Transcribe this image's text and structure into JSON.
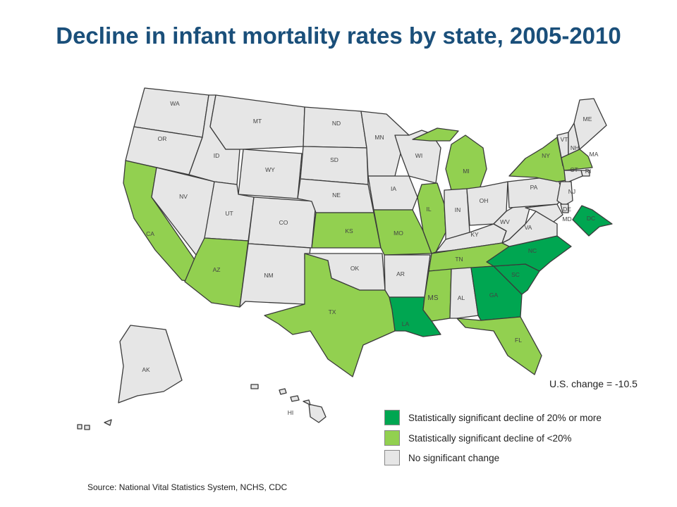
{
  "title": "Decline in infant mortality rates by state, 2005-2010",
  "colors": {
    "significant_20": "#00a651",
    "significant_lt20": "#92d050",
    "no_change": "#e6e6e6",
    "title": "#1a4f7a"
  },
  "states": [
    {
      "abbr": "WA",
      "category": "no_change"
    },
    {
      "abbr": "OR",
      "category": "no_change"
    },
    {
      "abbr": "CA",
      "category": "significant_lt20"
    },
    {
      "abbr": "NV",
      "category": "no_change"
    },
    {
      "abbr": "ID",
      "category": "no_change"
    },
    {
      "abbr": "MT",
      "category": "no_change"
    },
    {
      "abbr": "WY",
      "category": "no_change"
    },
    {
      "abbr": "UT",
      "category": "no_change"
    },
    {
      "abbr": "AZ",
      "category": "significant_lt20"
    },
    {
      "abbr": "CO",
      "category": "no_change"
    },
    {
      "abbr": "NM",
      "category": "no_change"
    },
    {
      "abbr": "ND",
      "category": "no_change"
    },
    {
      "abbr": "SD",
      "category": "no_change"
    },
    {
      "abbr": "NE",
      "category": "no_change"
    },
    {
      "abbr": "KS",
      "category": "significant_lt20"
    },
    {
      "abbr": "OK",
      "category": "no_change"
    },
    {
      "abbr": "TX",
      "category": "significant_lt20"
    },
    {
      "abbr": "MN",
      "category": "no_change"
    },
    {
      "abbr": "IA",
      "category": "no_change"
    },
    {
      "abbr": "MO",
      "category": "significant_lt20"
    },
    {
      "abbr": "AR",
      "category": "no_change"
    },
    {
      "abbr": "LA",
      "category": "significant_20"
    },
    {
      "abbr": "WI",
      "category": "no_change"
    },
    {
      "abbr": "IL",
      "category": "significant_lt20"
    },
    {
      "abbr": "MI",
      "category": "significant_lt20"
    },
    {
      "abbr": "IN",
      "category": "no_change"
    },
    {
      "abbr": "OH",
      "category": "no_change"
    },
    {
      "abbr": "KY",
      "category": "no_change"
    },
    {
      "abbr": "TN",
      "category": "significant_lt20"
    },
    {
      "abbr": "MS",
      "category": "significant_lt20"
    },
    {
      "abbr": "AL",
      "category": "no_change"
    },
    {
      "abbr": "GA",
      "category": "significant_20"
    },
    {
      "abbr": "FL",
      "category": "significant_lt20"
    },
    {
      "abbr": "SC",
      "category": "significant_20"
    },
    {
      "abbr": "NC",
      "category": "significant_20"
    },
    {
      "abbr": "VA",
      "category": "no_change"
    },
    {
      "abbr": "WV",
      "category": "no_change"
    },
    {
      "abbr": "PA",
      "category": "no_change"
    },
    {
      "abbr": "NY",
      "category": "significant_lt20"
    },
    {
      "abbr": "VT",
      "category": "no_change"
    },
    {
      "abbr": "NH",
      "category": "no_change"
    },
    {
      "abbr": "ME",
      "category": "no_change"
    },
    {
      "abbr": "MA",
      "category": "significant_lt20"
    },
    {
      "abbr": "RI",
      "category": "no_change"
    },
    {
      "abbr": "CT",
      "category": "no_change"
    },
    {
      "abbr": "NJ",
      "category": "no_change"
    },
    {
      "abbr": "DE",
      "category": "no_change"
    },
    {
      "abbr": "MD",
      "category": "no_change"
    },
    {
      "abbr": "DC",
      "category": "significant_20"
    },
    {
      "abbr": "AK",
      "category": "no_change"
    },
    {
      "abbr": "HI",
      "category": "no_change"
    }
  ],
  "us_change": "U.S. change = -10.5",
  "legend": [
    {
      "label": "Statistically significant decline of 20% or more",
      "category": "significant_20"
    },
    {
      "label": "Statistically significant decline of <20%",
      "category": "significant_lt20"
    },
    {
      "label": "No significant change",
      "category": "no_change"
    }
  ],
  "source": "Source: National Vital Statistics System, NCHS, CDC"
}
